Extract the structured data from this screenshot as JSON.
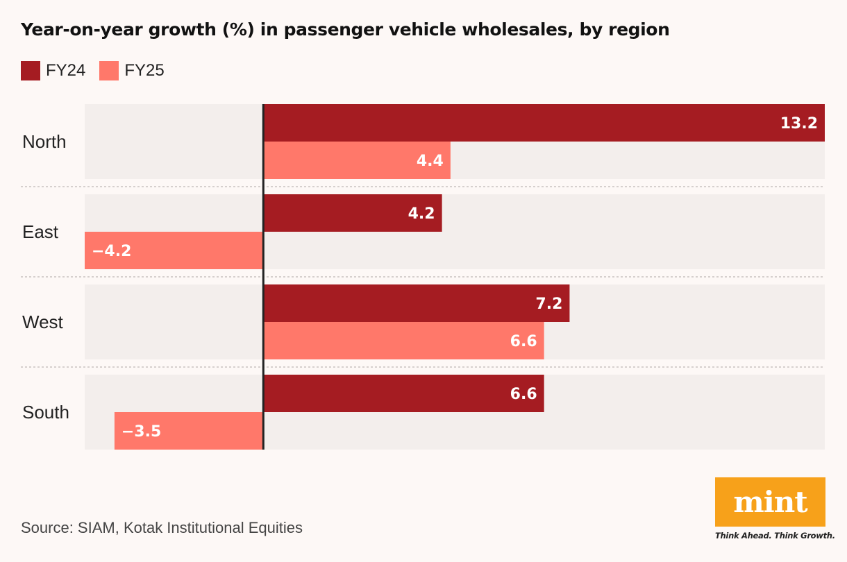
{
  "header": {
    "title": "Year-on-year growth (%) in passenger vehicle wholesales, by region"
  },
  "colors": {
    "fy24": "#a51c22",
    "fy25": "#ff786a",
    "band": "#f3eeec",
    "background": "#fdf8f6",
    "zero_line": "#222222",
    "logo_bg": "#f7a11a"
  },
  "chart_data": {
    "type": "bar",
    "orientation": "horizontal",
    "title": "Year-on-year growth (%) in passenger vehicle wholesales, by region",
    "categories": [
      "North",
      "East",
      "West",
      "South"
    ],
    "series": [
      {
        "name": "FY24",
        "values": [
          13.2,
          4.2,
          7.2,
          6.6
        ]
      },
      {
        "name": "FY25",
        "values": [
          4.4,
          -4.2,
          6.6,
          -3.5
        ]
      }
    ],
    "value_labels": {
      "FY24": [
        "13.2",
        "4.2",
        "7.2",
        "6.6"
      ],
      "FY25": [
        "4.4",
        "−4.2",
        "6.6",
        "−3.5"
      ]
    },
    "xlim": [
      -4.2,
      13.2
    ],
    "legend": "top-left",
    "grid": false
  },
  "footer": {
    "source": "Source: SIAM, Kotak Institutional Equities",
    "logo_text": "mint",
    "tagline": "Think Ahead. Think Growth."
  }
}
